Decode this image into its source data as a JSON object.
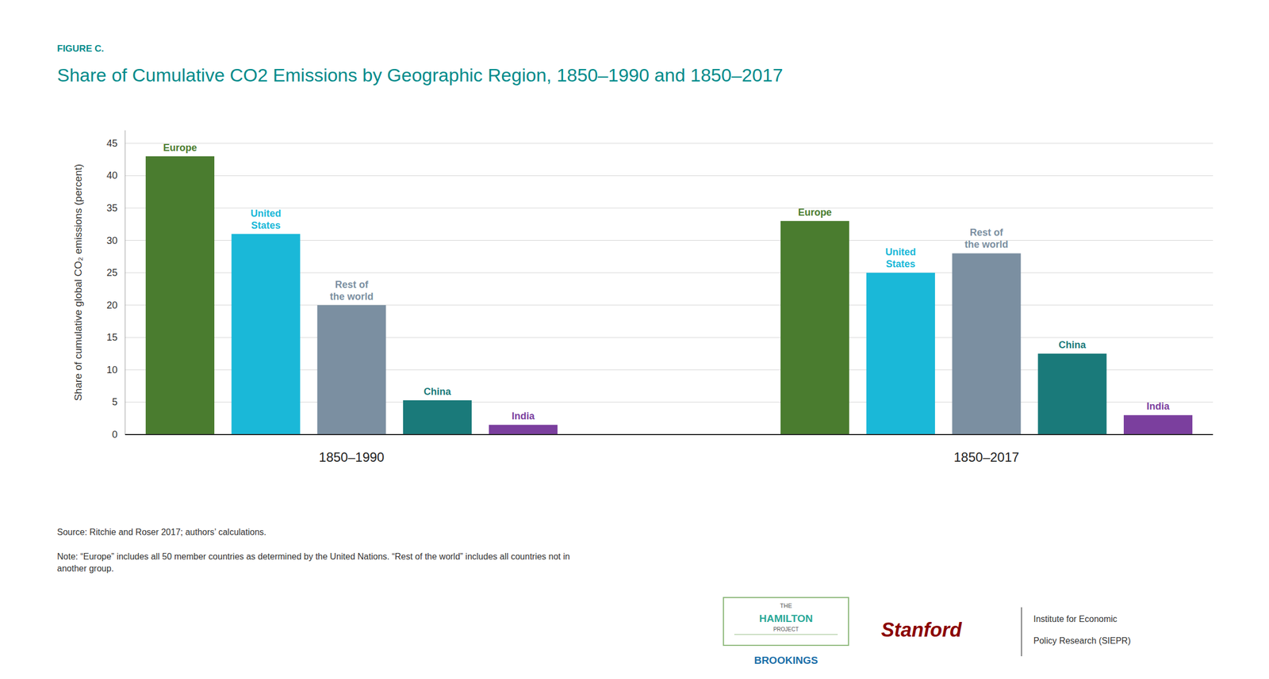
{
  "chart_data": {
    "type": "bar",
    "figure_label": "FIGURE C.",
    "title": "Share of Cumulative CO2 Emissions by Geographic Region, 1850–1990 and 1850–2017",
    "y_label": "Share of cumulative global CO₂ emissions (percent)",
    "categories": [
      "1850–1990",
      "1850–2017"
    ],
    "series": [
      {
        "name": "Europe",
        "color": "#4a7c2f",
        "values": [
          43,
          33
        ]
      },
      {
        "name": "United\nStates",
        "color": "#1ab8d8",
        "values": [
          31,
          25
        ]
      },
      {
        "name": "Rest of\nthe world",
        "color": "#7b8fa1",
        "values": [
          20,
          28
        ]
      },
      {
        "name": "China",
        "color": "#1a7a7a",
        "values": [
          5.3,
          12.5
        ]
      },
      {
        "name": "India",
        "color": "#7b3f9e",
        "values": [
          1.5,
          3.0
        ]
      }
    ],
    "ylim": [
      0,
      47
    ],
    "yticks": [
      0,
      5,
      10,
      15,
      20,
      25,
      30,
      35,
      40,
      45
    ],
    "grid": true,
    "source": "Source: Ritchie and Roser 2017; authors’ calculations.",
    "note": "Note: “Europe” includes all 50 member countries as determined by the United Nations. “Rest of the world” includes all countries not in\nanother group.",
    "annotations": [
      "THE",
      "HAMILTON",
      "PROJECT",
      "BROOKINGS",
      "Stanford",
      "Institute for Economic",
      "Policy Research (SIEPR)"
    ]
  }
}
